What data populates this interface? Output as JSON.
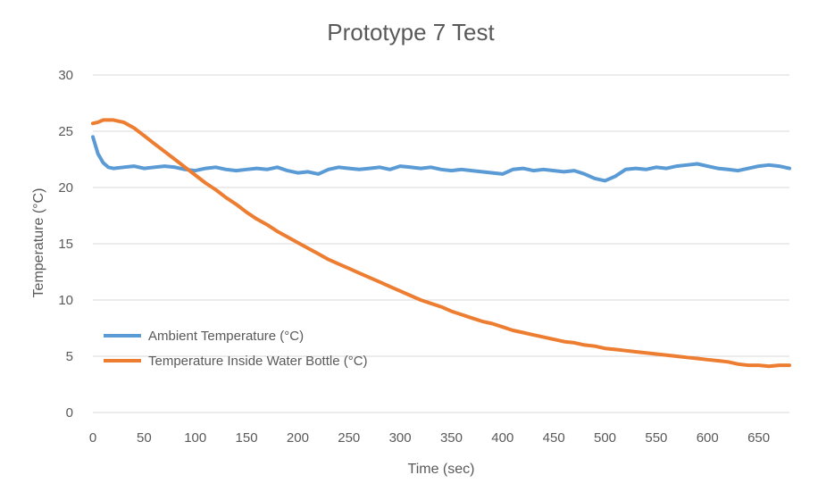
{
  "chart_data": {
    "type": "line",
    "title": "Prototype 7 Test",
    "xlabel": "Time (sec)",
    "ylabel": "Temperature (°C)",
    "xlim": [
      0,
      680
    ],
    "ylim": [
      0,
      30
    ],
    "x_ticks": [
      "0",
      "50",
      "100",
      "150",
      "200",
      "250",
      "300",
      "350",
      "400",
      "450",
      "500",
      "550",
      "600",
      "650"
    ],
    "y_ticks": [
      "0",
      "5",
      "10",
      "15",
      "20",
      "25",
      "30"
    ],
    "grid": true,
    "legend_position": "bottom-left",
    "series": [
      {
        "name": "Ambient Temperature (°C)",
        "color": "#5b9bd5",
        "x": [
          0,
          5,
          10,
          15,
          20,
          30,
          40,
          50,
          60,
          70,
          80,
          90,
          100,
          110,
          120,
          130,
          140,
          150,
          160,
          170,
          180,
          190,
          200,
          210,
          220,
          230,
          240,
          250,
          260,
          270,
          280,
          290,
          300,
          310,
          320,
          330,
          340,
          350,
          360,
          370,
          380,
          390,
          400,
          410,
          420,
          430,
          440,
          450,
          460,
          470,
          480,
          490,
          500,
          510,
          520,
          530,
          540,
          550,
          560,
          570,
          580,
          590,
          600,
          610,
          620,
          630,
          640,
          650,
          660,
          670,
          680
        ],
        "y": [
          24.5,
          23.0,
          22.2,
          21.8,
          21.7,
          21.8,
          21.9,
          21.7,
          21.8,
          21.9,
          21.8,
          21.6,
          21.5,
          21.7,
          21.8,
          21.6,
          21.5,
          21.6,
          21.7,
          21.6,
          21.8,
          21.5,
          21.3,
          21.4,
          21.2,
          21.6,
          21.8,
          21.7,
          21.6,
          21.7,
          21.8,
          21.6,
          21.9,
          21.8,
          21.7,
          21.8,
          21.6,
          21.5,
          21.6,
          21.5,
          21.4,
          21.3,
          21.2,
          21.6,
          21.7,
          21.5,
          21.6,
          21.5,
          21.4,
          21.5,
          21.2,
          20.8,
          20.6,
          21.0,
          21.6,
          21.7,
          21.6,
          21.8,
          21.7,
          21.9,
          22.0,
          22.1,
          21.9,
          21.7,
          21.6,
          21.5,
          21.7,
          21.9,
          22.0,
          21.9,
          21.7
        ]
      },
      {
        "name": "Temperature Inside Water Bottle (°C)",
        "color": "#ed7d31",
        "x": [
          0,
          5,
          10,
          20,
          30,
          40,
          50,
          60,
          70,
          80,
          90,
          100,
          110,
          120,
          130,
          140,
          150,
          160,
          170,
          180,
          190,
          200,
          210,
          220,
          230,
          240,
          250,
          260,
          270,
          280,
          290,
          300,
          310,
          320,
          330,
          340,
          350,
          360,
          370,
          380,
          390,
          400,
          410,
          420,
          430,
          440,
          450,
          460,
          470,
          480,
          490,
          500,
          510,
          520,
          530,
          540,
          550,
          560,
          570,
          580,
          590,
          600,
          610,
          620,
          630,
          640,
          650,
          660,
          670,
          680
        ],
        "y": [
          25.7,
          25.8,
          26.0,
          26.0,
          25.8,
          25.3,
          24.6,
          23.9,
          23.2,
          22.5,
          21.8,
          21.1,
          20.4,
          19.8,
          19.1,
          18.5,
          17.8,
          17.2,
          16.7,
          16.1,
          15.6,
          15.1,
          14.6,
          14.1,
          13.6,
          13.2,
          12.8,
          12.4,
          12.0,
          11.6,
          11.2,
          10.8,
          10.4,
          10.0,
          9.7,
          9.4,
          9.0,
          8.7,
          8.4,
          8.1,
          7.9,
          7.6,
          7.3,
          7.1,
          6.9,
          6.7,
          6.5,
          6.3,
          6.2,
          6.0,
          5.9,
          5.7,
          5.6,
          5.5,
          5.4,
          5.3,
          5.2,
          5.1,
          5.0,
          4.9,
          4.8,
          4.7,
          4.6,
          4.5,
          4.3,
          4.2,
          4.2,
          4.1,
          4.2,
          4.2
        ]
      }
    ]
  }
}
